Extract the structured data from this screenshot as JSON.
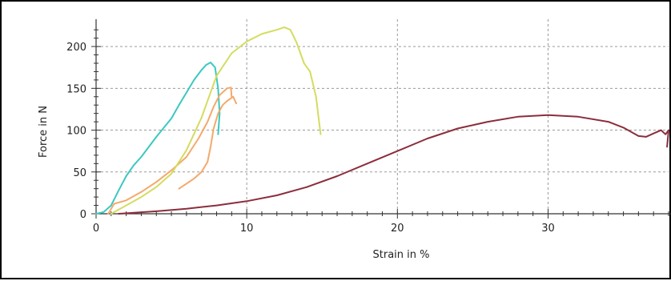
{
  "chart_data": {
    "type": "line",
    "title": "",
    "xlabel": "Strain in %",
    "ylabel": "Force in N",
    "xlim": [
      0,
      38
    ],
    "ylim": [
      0,
      225
    ],
    "xticks": [
      0,
      10,
      20,
      30
    ],
    "yticks": [
      0,
      50,
      100,
      150,
      200
    ],
    "ytick_labels": [
      "0",
      "50",
      "100",
      "150",
      "200"
    ],
    "grid": true,
    "legend": "none",
    "series": [
      {
        "color": "#3cc8c0",
        "points": [
          [
            0,
            0
          ],
          [
            0.5,
            2
          ],
          [
            1,
            10
          ],
          [
            1.5,
            28
          ],
          [
            2,
            45
          ],
          [
            2.5,
            58
          ],
          [
            3,
            68
          ],
          [
            3.5,
            80
          ],
          [
            4,
            92
          ],
          [
            4.5,
            103
          ],
          [
            5,
            114
          ],
          [
            5.5,
            130
          ],
          [
            6,
            145
          ],
          [
            6.5,
            160
          ],
          [
            7,
            172
          ],
          [
            7.3,
            178
          ],
          [
            7.6,
            181
          ],
          [
            7.9,
            175
          ],
          [
            8.1,
            150
          ],
          [
            8.2,
            120
          ],
          [
            8.1,
            95
          ]
        ]
      },
      {
        "color": "#f4a96a",
        "points": [
          [
            0.8,
            0
          ],
          [
            1.2,
            12
          ],
          [
            2,
            16
          ],
          [
            3,
            26
          ],
          [
            4,
            38
          ],
          [
            5,
            52
          ],
          [
            6,
            68
          ],
          [
            6.8,
            90
          ],
          [
            7.4,
            110
          ],
          [
            7.8,
            128
          ],
          [
            8.2,
            142
          ],
          [
            8.7,
            150
          ],
          [
            8.95,
            151
          ],
          [
            9.0,
            140
          ]
        ]
      },
      {
        "color": "#f4a96a",
        "points": [
          [
            5.5,
            30
          ],
          [
            6,
            36
          ],
          [
            6.5,
            42
          ],
          [
            7,
            50
          ],
          [
            7.4,
            62
          ],
          [
            7.6,
            80
          ],
          [
            7.8,
            102
          ],
          [
            8.1,
            120
          ],
          [
            8.4,
            130
          ],
          [
            8.7,
            135
          ],
          [
            9.1,
            140
          ],
          [
            9.3,
            132
          ]
        ]
      },
      {
        "color": "#d4dc60",
        "points": [
          [
            1,
            0
          ],
          [
            2,
            10
          ],
          [
            3,
            20
          ],
          [
            4,
            32
          ],
          [
            5,
            48
          ],
          [
            6,
            76
          ],
          [
            7,
            115
          ],
          [
            7.5,
            140
          ],
          [
            8,
            165
          ],
          [
            9,
            192
          ],
          [
            10,
            206
          ],
          [
            11,
            215
          ],
          [
            12,
            220
          ],
          [
            12.5,
            223
          ],
          [
            12.9,
            220
          ],
          [
            13.3,
            205
          ],
          [
            13.8,
            180
          ],
          [
            14.2,
            170
          ],
          [
            14.6,
            140
          ],
          [
            14.8,
            110
          ],
          [
            14.9,
            95
          ]
        ]
      },
      {
        "color": "#8b2e3c",
        "points": [
          [
            1.5,
            0
          ],
          [
            4,
            3
          ],
          [
            6,
            6
          ],
          [
            8,
            10
          ],
          [
            10,
            15
          ],
          [
            12,
            22
          ],
          [
            14,
            32
          ],
          [
            16,
            45
          ],
          [
            18,
            60
          ],
          [
            20,
            75
          ],
          [
            22,
            90
          ],
          [
            24,
            102
          ],
          [
            26,
            110
          ],
          [
            28,
            116
          ],
          [
            30,
            118
          ],
          [
            32,
            116
          ],
          [
            34,
            110
          ],
          [
            35,
            103
          ],
          [
            36,
            93
          ],
          [
            36.5,
            92
          ],
          [
            37,
            96
          ],
          [
            37.5,
            100
          ],
          [
            37.8,
            95
          ],
          [
            38,
            100
          ],
          [
            37.9,
            80
          ]
        ]
      }
    ]
  }
}
